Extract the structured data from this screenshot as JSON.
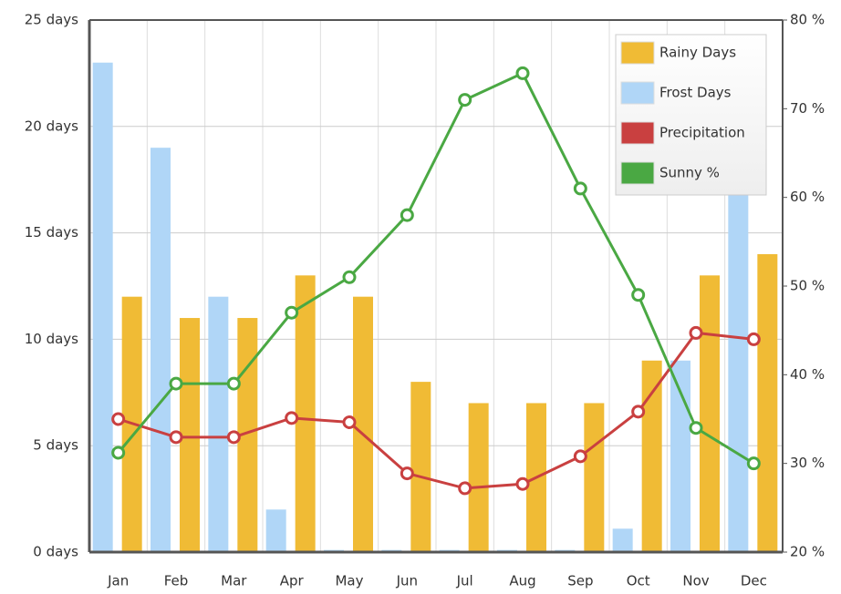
{
  "chart_data": {
    "type": "bar-line",
    "categories": [
      "Jan",
      "Feb",
      "Mar",
      "Apr",
      "May",
      "Jun",
      "Jul",
      "Aug",
      "Sep",
      "Oct",
      "Nov",
      "Dec"
    ],
    "series": [
      {
        "name": "Rainy Days",
        "type": "bar",
        "color": "#f0bb35",
        "values": [
          12,
          11,
          11,
          13,
          12,
          8,
          7,
          7,
          7,
          9,
          13,
          14
        ]
      },
      {
        "name": "Frost Days",
        "type": "bar",
        "color": "#b0d6f7",
        "values": [
          23,
          19,
          12,
          2,
          0.1,
          0.1,
          0.1,
          0.1,
          0.1,
          1.1,
          9,
          19.5
        ]
      },
      {
        "name": "Precipitation",
        "type": "line",
        "color": "#c94040",
        "values": [
          6.25,
          5.4,
          5.4,
          6.3,
          6.1,
          3.7,
          3.0,
          3.2,
          4.5,
          6.6,
          10.3,
          10.0
        ]
      },
      {
        "name": "Sunny %",
        "type": "line",
        "color": "#4aa843",
        "axis": "y2",
        "values": [
          31.2,
          39,
          39,
          47,
          51,
          58,
          71,
          74,
          61,
          49,
          34,
          30
        ]
      }
    ],
    "ylim": [
      0,
      25
    ],
    "yticks": [
      {
        "value": 0,
        "label": "0 days"
      },
      {
        "value": 5,
        "label": "5 days"
      },
      {
        "value": 10,
        "label": "10 days"
      },
      {
        "value": 15,
        "label": "15 days"
      },
      {
        "value": 20,
        "label": "20 days"
      },
      {
        "value": 25,
        "label": "25 days"
      }
    ],
    "y2lim": [
      20,
      80
    ],
    "y2ticks": [
      {
        "value": 20,
        "label": "20 %"
      },
      {
        "value": 30,
        "label": "30 %"
      },
      {
        "value": 40,
        "label": "40 %"
      },
      {
        "value": 50,
        "label": "50 %"
      },
      {
        "value": 60,
        "label": "60 %"
      },
      {
        "value": 70,
        "label": "70 %"
      },
      {
        "value": 80,
        "label": "80 %"
      }
    ],
    "grid": true,
    "legend": "top-right"
  }
}
